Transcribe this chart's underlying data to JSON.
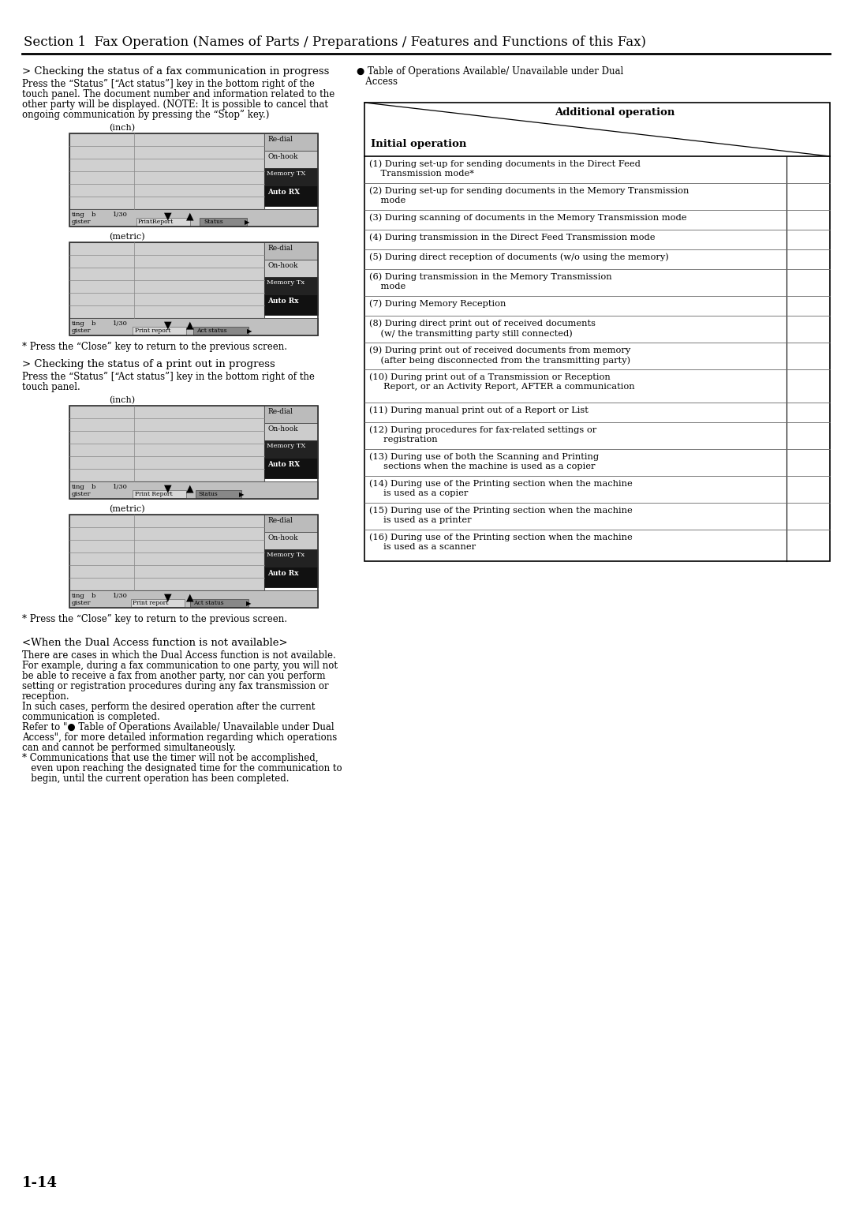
{
  "page_bg": "#ffffff",
  "header_text": "Section 1  Fax Operation (Names of Parts / Preparations / Features and Functions of this Fax)",
  "page_number": "1-14",
  "left_col": {
    "section1_title": "> Checking the status of a fax communication in progress",
    "section1_body_lines": [
      "Press the “Status” [“Act status”] key in the bottom right of the",
      "touch panel. The document number and information related to the",
      "other party will be displayed. (NOTE: It is possible to cancel that",
      "ongoing communication by pressing the “Stop” key.)"
    ],
    "close_note": "* Press the “Close” key to return to the previous screen.",
    "section2_title": "> Checking the status of a print out in progress",
    "section2_body_lines": [
      "Press the “Status” [“Act status”] key in the bottom right of the",
      "touch panel."
    ],
    "close_note2": "* Press the “Close” key to return to the previous screen.",
    "dual_title": "<When the Dual Access function is not available>",
    "dual_body_lines": [
      "There are cases in which the Dual Access function is not available.",
      "For example, during a fax communication to one party, you will not",
      "be able to receive a fax from another party, nor can you perform",
      "setting or registration procedures during any fax transmission or",
      "reception.",
      "In such cases, perform the desired operation after the current",
      "communication is completed.",
      "Refer to \"● Table of Operations Available/ Unavailable under Dual",
      "Access\", for more detailed information regarding which operations",
      "can and cannot be performed simultaneously.",
      "* Communications that use the timer will not be accomplished,",
      "   even upon reaching the designated time for the communication to",
      "   begin, until the current operation has been completed."
    ]
  },
  "right_col": {
    "bullet_line1": "● Table of Operations Available/ Unavailable under Dual",
    "bullet_line2": "   Access",
    "table_header_right": "Additional operation",
    "table_header_left": "Initial operation",
    "rows": [
      [
        "(1) During set-up for sending documents in the Direct Feed",
        "    Transmission mode*"
      ],
      [
        "(2) During set-up for sending documents in the Memory Transmission",
        "    mode"
      ],
      [
        "(3) During scanning of documents in the Memory Transmission mode"
      ],
      [
        "(4) During transmission in the Direct Feed Transmission mode"
      ],
      [
        "(5) During direct reception of documents (w/o using the memory)"
      ],
      [
        "(6) During transmission in the Memory Transmission",
        "    mode"
      ],
      [
        "(7) During Memory Reception"
      ],
      [
        "(8) During direct print out of received documents",
        "    (w/ the transmitting party still connected)"
      ],
      [
        "(9) During print out of received documents from memory",
        "    (after being disconnected from the transmitting party)"
      ],
      [
        "(10) During print out of a Transmission or Reception",
        "     Report, or an Activity Report, AFTER a communication"
      ],
      [
        "(11) During manual print out of a Report or List"
      ],
      [
        "(12) During procedures for fax-related settings or",
        "     registration"
      ],
      [
        "(13) During use of both the Scanning and Printing",
        "     sections when the machine is used as a copier"
      ],
      [
        "(14) During use of the Printing section when the machine",
        "     is used as a copier"
      ],
      [
        "(15) During use of the Printing section when the machine",
        "     is used as a printer"
      ],
      [
        "(16) During use of the Printing section when the machine",
        "     is used as a scanner"
      ]
    ]
  }
}
